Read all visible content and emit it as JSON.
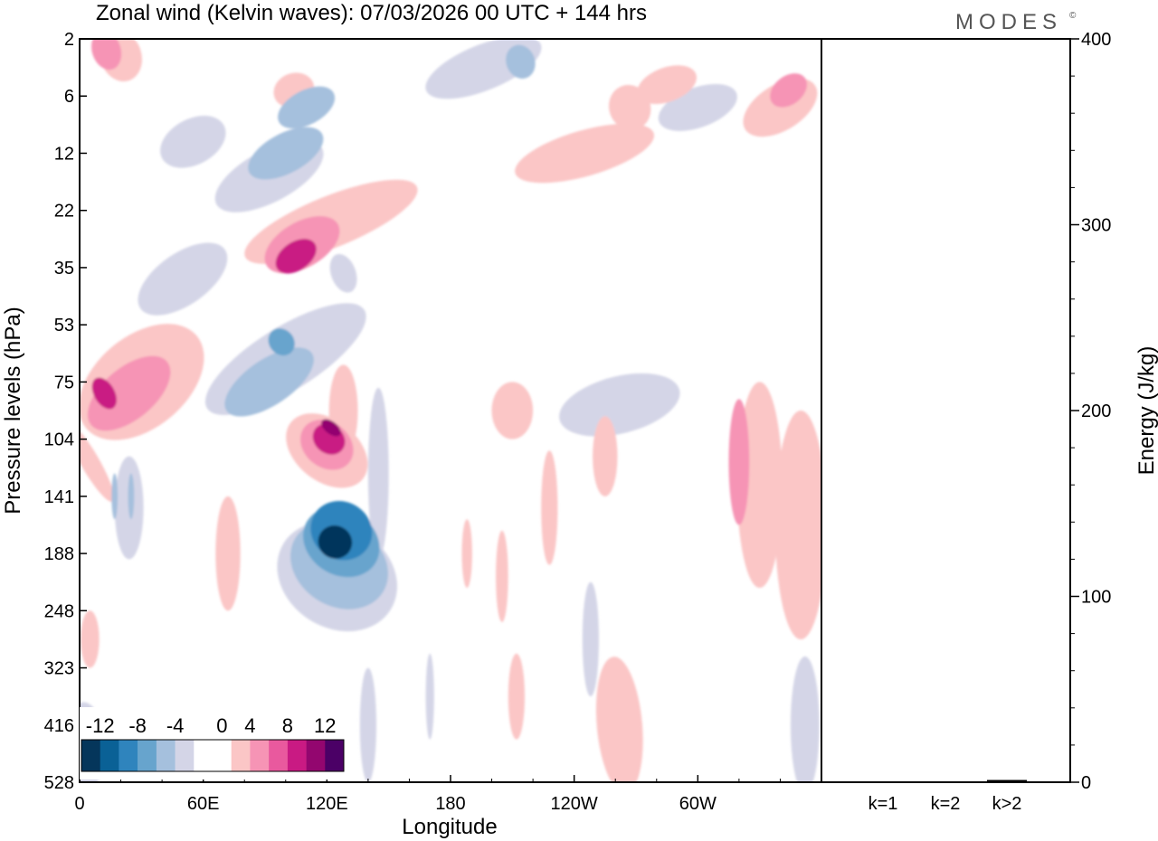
{
  "chart_data": {
    "type": "heatmap",
    "title": "Zonal wind (Kelvin waves):  07/03/2026  00 UTC  + 144 hrs",
    "logo": "MODES",
    "logo_mark": "©",
    "xlabel": "Longitude",
    "ylabel": "Pressure levels (hPa)",
    "ylabel_right": "Energy (J/kg)",
    "x_ticks": [
      "0",
      "60E",
      "120E",
      "180",
      "120W",
      "60W"
    ],
    "x_tick_degrees": [
      0,
      60,
      120,
      180,
      240,
      300
    ],
    "x_range_degrees": [
      0,
      360
    ],
    "y_ticks": [
      "2",
      "6",
      "12",
      "22",
      "35",
      "53",
      "75",
      "104",
      "141",
      "188",
      "248",
      "323",
      "416",
      "528"
    ],
    "energy_axis": {
      "ticks": [
        "0",
        "100",
        "200",
        "300",
        "400"
      ],
      "range": [
        0,
        400
      ]
    },
    "energy_categories": [
      "k=1",
      "k=2",
      "k>2"
    ],
    "energy_values": [
      0.5,
      0.2,
      1.2
    ],
    "colorbar": {
      "labels": [
        "-12",
        "-8",
        "-4",
        "0",
        "4",
        "8",
        "12"
      ],
      "colors": [
        "#05365b",
        "#0a6196",
        "#2f84bd",
        "#67a4cd",
        "#a5c0dd",
        "#d4d5e7",
        "#ffffff",
        "#ffffff",
        "#fbc6c6",
        "#f694b5",
        "#e9599e",
        "#c91a83",
        "#93066f",
        "#4b0066"
      ]
    },
    "blobs": [
      {
        "lon": 13,
        "lev": 0.2,
        "w": 14,
        "h": 0.7,
        "rot": -18,
        "v": 5
      },
      {
        "lon": 20,
        "lev": 0.3,
        "w": 20,
        "h": 0.9,
        "rot": -18,
        "v": 3
      },
      {
        "lon": 55,
        "lev": 1.8,
        "w": 34,
        "h": 0.8,
        "rot": -28,
        "v": -2
      },
      {
        "lon": 50,
        "lev": 4.2,
        "w": 50,
        "h": 0.9,
        "rot": -35,
        "v": -2
      },
      {
        "lon": 30,
        "lev": 6.0,
        "w": 70,
        "h": 1.6,
        "rot": -40,
        "v": 3
      },
      {
        "lon": 24,
        "lev": 6.2,
        "w": 48,
        "h": 0.9,
        "rot": -40,
        "v": 5
      },
      {
        "lon": 12,
        "lev": 6.2,
        "w": 10,
        "h": 0.6,
        "rot": -30,
        "v": 8
      },
      {
        "lon": 24,
        "lev": 8.2,
        "w": 14,
        "h": 1.8,
        "rot": 0,
        "v": -2
      },
      {
        "lon": 17,
        "lev": 8.0,
        "w": 3,
        "h": 0.8,
        "rot": 0,
        "v": -4
      },
      {
        "lon": 25,
        "lev": 8.0,
        "w": 3,
        "h": 0.8,
        "rot": 0,
        "v": -4
      },
      {
        "lon": 5,
        "lev": 7.4,
        "w": 9,
        "h": 1.6,
        "rot": -30,
        "v": 3
      },
      {
        "lon": 72,
        "lev": 9.0,
        "w": 12,
        "h": 2.0,
        "rot": 0,
        "v": 3
      },
      {
        "lon": 5,
        "lev": 10.5,
        "w": 9,
        "h": 1.0,
        "rot": 0,
        "v": 3
      },
      {
        "lon": 2,
        "lev": 12.4,
        "w": 20,
        "h": 1.6,
        "rot": 0,
        "v": -2
      },
      {
        "lon": 92,
        "lev": 2.4,
        "w": 58,
        "h": 0.9,
        "rot": -28,
        "v": -2
      },
      {
        "lon": 100,
        "lev": 2.0,
        "w": 40,
        "h": 0.7,
        "rot": -28,
        "v": -4
      },
      {
        "lon": 110,
        "lev": 1.2,
        "w": 30,
        "h": 0.6,
        "rot": -28,
        "v": -4
      },
      {
        "lon": 104,
        "lev": 0.9,
        "w": 20,
        "h": 0.6,
        "rot": -20,
        "v": 3
      },
      {
        "lon": 122,
        "lev": 3.2,
        "w": 90,
        "h": 0.9,
        "rot": -22,
        "v": 3
      },
      {
        "lon": 108,
        "lev": 3.6,
        "w": 40,
        "h": 0.8,
        "rot": -30,
        "v": 5
      },
      {
        "lon": 105,
        "lev": 3.8,
        "w": 22,
        "h": 0.5,
        "rot": -34,
        "v": 8
      },
      {
        "lon": 100,
        "lev": 5.6,
        "w": 90,
        "h": 1.1,
        "rot": -32,
        "v": -2
      },
      {
        "lon": 92,
        "lev": 6.0,
        "w": 50,
        "h": 0.8,
        "rot": -34,
        "v": -4
      },
      {
        "lon": 98,
        "lev": 5.3,
        "w": 12,
        "h": 0.5,
        "rot": -40,
        "v": -6
      },
      {
        "lon": 128,
        "lev": 4.1,
        "w": 12,
        "h": 0.7,
        "rot": -20,
        "v": -2
      },
      {
        "lon": 128,
        "lev": 6.5,
        "w": 14,
        "h": 1.6,
        "rot": 0,
        "v": 3
      },
      {
        "lon": 120,
        "lev": 7.2,
        "w": 30,
        "h": 1.6,
        "rot": -52,
        "v": 3
      },
      {
        "lon": 120,
        "lev": 7.1,
        "w": 22,
        "h": 1.0,
        "rot": -52,
        "v": 5
      },
      {
        "lon": 121,
        "lev": 7.0,
        "w": 14,
        "h": 0.6,
        "rot": -52,
        "v": 8
      },
      {
        "lon": 122,
        "lev": 6.8,
        "w": 6,
        "h": 0.4,
        "rot": -52,
        "v": 11
      },
      {
        "lon": 125,
        "lev": 9.4,
        "w": 50,
        "h": 2.2,
        "rot": -58,
        "v": -2
      },
      {
        "lon": 126,
        "lev": 9.2,
        "w": 40,
        "h": 1.8,
        "rot": -58,
        "v": -4
      },
      {
        "lon": 127,
        "lev": 8.8,
        "w": 32,
        "h": 1.4,
        "rot": -58,
        "v": -6
      },
      {
        "lon": 127,
        "lev": 8.6,
        "w": 28,
        "h": 1.1,
        "rot": -58,
        "v": -9
      },
      {
        "lon": 124,
        "lev": 8.8,
        "w": 16,
        "h": 0.6,
        "rot": -62,
        "v": -12
      },
      {
        "lon": 145,
        "lev": 7.6,
        "w": 10,
        "h": 3.0,
        "rot": 0,
        "v": -2
      },
      {
        "lon": 170,
        "lev": 11.5,
        "w": 4,
        "h": 1.5,
        "rot": 0,
        "v": -2
      },
      {
        "lon": 140,
        "lev": 12.0,
        "w": 8,
        "h": 2.0,
        "rot": 0,
        "v": -2
      },
      {
        "lon": 196,
        "lev": 0.5,
        "w": 60,
        "h": 0.8,
        "rot": -22,
        "v": -2
      },
      {
        "lon": 214,
        "lev": 0.4,
        "w": 14,
        "h": 0.6,
        "rot": -20,
        "v": -4
      },
      {
        "lon": 245,
        "lev": 2.0,
        "w": 70,
        "h": 0.8,
        "rot": -16,
        "v": 3
      },
      {
        "lon": 267,
        "lev": 1.2,
        "w": 20,
        "h": 0.8,
        "rot": -22,
        "v": 3
      },
      {
        "lon": 285,
        "lev": 0.8,
        "w": 30,
        "h": 0.6,
        "rot": -20,
        "v": 3
      },
      {
        "lon": 300,
        "lev": 1.2,
        "w": 40,
        "h": 0.7,
        "rot": -20,
        "v": -2
      },
      {
        "lon": 340,
        "lev": 1.2,
        "w": 40,
        "h": 0.8,
        "rot": -32,
        "v": 3
      },
      {
        "lon": 344,
        "lev": 0.9,
        "w": 20,
        "h": 0.5,
        "rot": -38,
        "v": 5
      },
      {
        "lon": 262,
        "lev": 6.4,
        "w": 60,
        "h": 1.0,
        "rot": -14,
        "v": -2
      },
      {
        "lon": 210,
        "lev": 6.5,
        "w": 20,
        "h": 1.0,
        "rot": 0,
        "v": 3
      },
      {
        "lon": 255,
        "lev": 7.3,
        "w": 12,
        "h": 1.4,
        "rot": 0,
        "v": 3
      },
      {
        "lon": 228,
        "lev": 8.2,
        "w": 8,
        "h": 2.0,
        "rot": 0,
        "v": 3
      },
      {
        "lon": 350,
        "lev": 8.5,
        "w": 25,
        "h": 4.0,
        "rot": 0,
        "v": 3
      },
      {
        "lon": 330,
        "lev": 7.8,
        "w": 22,
        "h": 3.6,
        "rot": 0,
        "v": 3
      },
      {
        "lon": 320,
        "lev": 7.4,
        "w": 10,
        "h": 2.2,
        "rot": 0,
        "v": 5
      },
      {
        "lon": 248,
        "lev": 10.5,
        "w": 8,
        "h": 2.0,
        "rot": 0,
        "v": -2
      },
      {
        "lon": 262,
        "lev": 12.0,
        "w": 22,
        "h": 2.4,
        "rot": -5,
        "v": 3
      },
      {
        "lon": 352,
        "lev": 12.0,
        "w": 14,
        "h": 2.4,
        "rot": 0,
        "v": -2
      },
      {
        "lon": 205,
        "lev": 9.4,
        "w": 6,
        "h": 1.6,
        "rot": 0,
        "v": 3
      },
      {
        "lon": 188,
        "lev": 9.0,
        "w": 5,
        "h": 1.2,
        "rot": 0,
        "v": 3
      },
      {
        "lon": 212,
        "lev": 11.5,
        "w": 8,
        "h": 1.5,
        "rot": 0,
        "v": 3
      }
    ]
  },
  "footer": {
    "energy_caption": "Energy (J/kg)"
  }
}
